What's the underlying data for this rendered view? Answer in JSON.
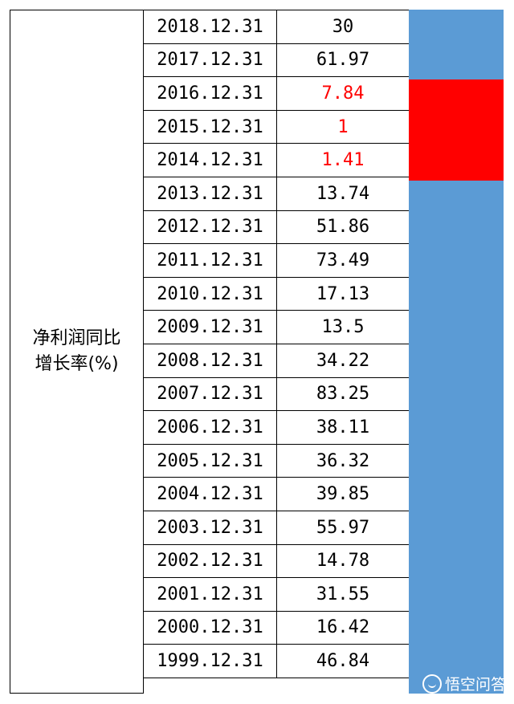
{
  "label": "净利润同比\n增长率(%)",
  "rows": [
    {
      "date": "2018.12.31",
      "value": "30",
      "highlight": false
    },
    {
      "date": "2017.12.31",
      "value": "61.97",
      "highlight": false
    },
    {
      "date": "2016.12.31",
      "value": "7.84",
      "highlight": true
    },
    {
      "date": "2015.12.31",
      "value": "1",
      "highlight": true
    },
    {
      "date": "2014.12.31",
      "value": "1.41",
      "highlight": true
    },
    {
      "date": "2013.12.31",
      "value": "13.74",
      "highlight": false
    },
    {
      "date": "2012.12.31",
      "value": "51.86",
      "highlight": false
    },
    {
      "date": "2011.12.31",
      "value": "73.49",
      "highlight": false
    },
    {
      "date": "2010.12.31",
      "value": "17.13",
      "highlight": false
    },
    {
      "date": "2009.12.31",
      "value": "13.5",
      "highlight": false
    },
    {
      "date": "2008.12.31",
      "value": "34.22",
      "highlight": false
    },
    {
      "date": "2007.12.31",
      "value": "83.25",
      "highlight": false
    },
    {
      "date": "2006.12.31",
      "value": "38.11",
      "highlight": false
    },
    {
      "date": "2005.12.31",
      "value": "36.32",
      "highlight": false
    },
    {
      "date": "2004.12.31",
      "value": "39.85",
      "highlight": false
    },
    {
      "date": "2003.12.31",
      "value": "55.97",
      "highlight": false
    },
    {
      "date": "2002.12.31",
      "value": "14.78",
      "highlight": false
    },
    {
      "date": "2001.12.31",
      "value": "31.55",
      "highlight": false
    },
    {
      "date": "2000.12.31",
      "value": "16.42",
      "highlight": false
    },
    {
      "date": "1999.12.31",
      "value": "46.84",
      "highlight": false
    }
  ],
  "colors": {
    "bar": "#5b9bd5",
    "highlight": "#ff0000"
  },
  "watermark": {
    "text": "悟空问答",
    "icon": "wukong-logo-icon"
  }
}
